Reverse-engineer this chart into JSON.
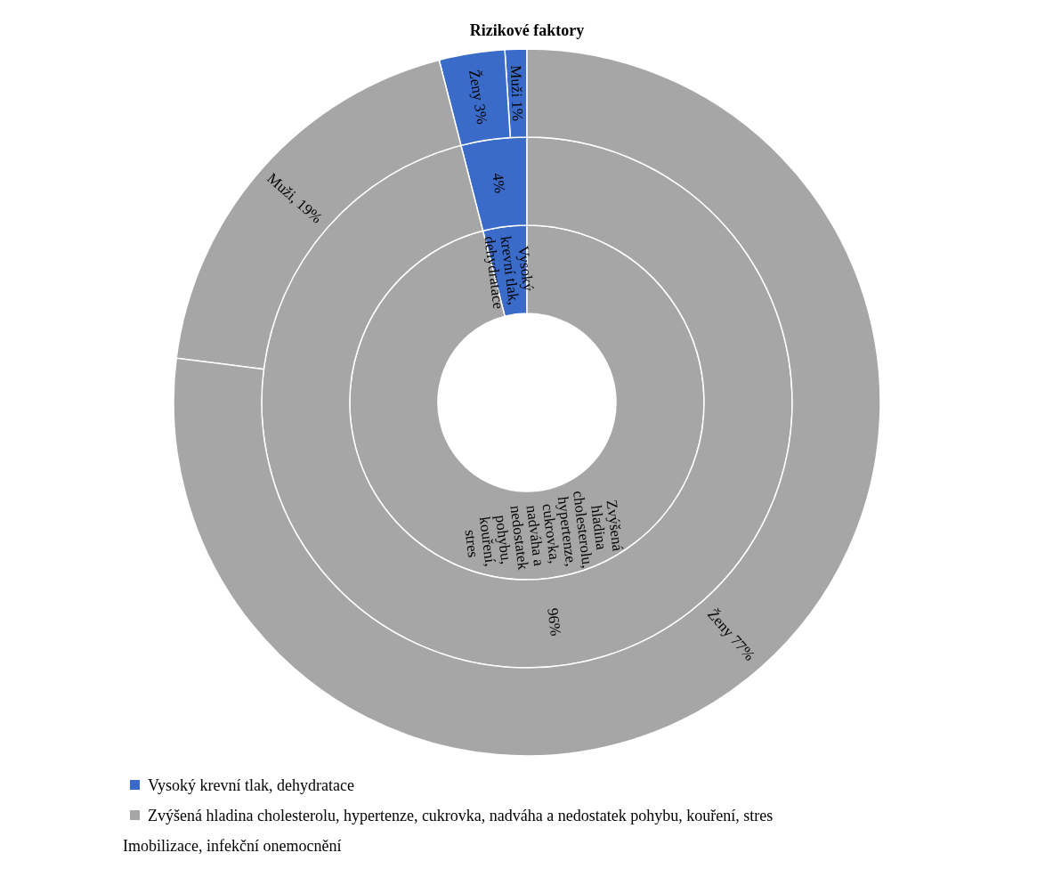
{
  "chart_data": [
    {
      "type": "donut",
      "title": "Rizikové faktory",
      "categories": [
        "Vysoký krevní tlak, dehydratace",
        "Zvýšená hladina cholesterolu, hypertenze, cukrovka, nadváha a nedostatek pohybu, kouření, stres"
      ],
      "values": [
        4,
        96
      ],
      "colors": [
        "#3a6bc8",
        "#a6a6a6"
      ],
      "legend": "bottom",
      "annotations": [
        "Imobilizace, infekční onemocnění"
      ]
    },
    {
      "type": "donut",
      "categories": [
        null,
        null
      ],
      "values": [
        4,
        96
      ],
      "colors": [
        "#3a6bc8",
        "#a6a6a6"
      ],
      "value_labels": [
        "4%",
        "96%"
      ]
    },
    {
      "type": "donut",
      "values": [
        1,
        3,
        19,
        77
      ],
      "colors": [
        "#3a6bc8",
        "#3a6bc8",
        "#a6a6a6",
        "#a6a6a6"
      ],
      "value_labels": [
        "Muži 1%",
        "Ženy 3%",
        "Muži, 19%",
        "Ženy 77%"
      ]
    }
  ]
}
